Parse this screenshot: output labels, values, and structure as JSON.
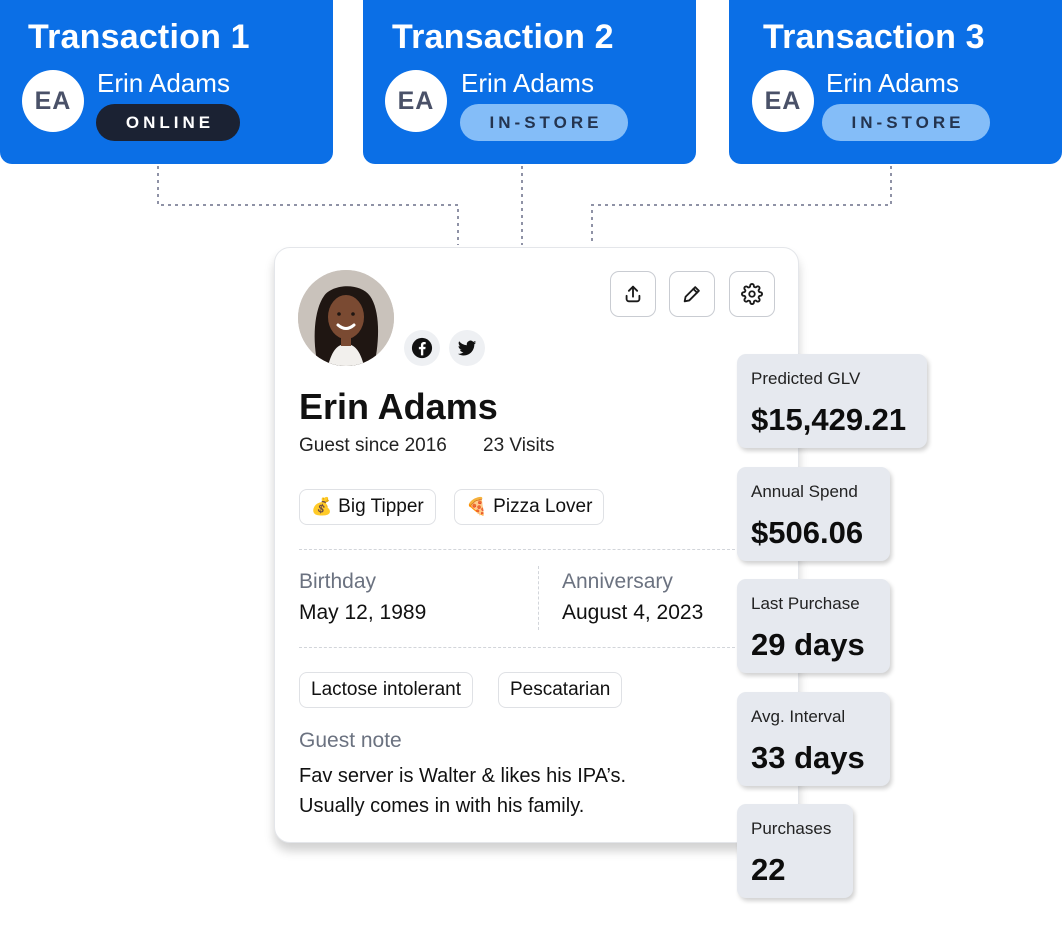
{
  "transactions": [
    {
      "title": "Transaction 1",
      "initials": "EA",
      "name": "Erin Adams",
      "channel": "ONLINE"
    },
    {
      "title": "Transaction 2",
      "initials": "EA",
      "name": "Erin Adams",
      "channel": "IN-STORE"
    },
    {
      "title": "Transaction 3",
      "initials": "EA",
      "name": "Erin Adams",
      "channel": "IN-STORE"
    }
  ],
  "colors": {
    "brand_blue": "#0b6fe6",
    "online_badge": "#1b2233",
    "instore_badge": "#84bdf8",
    "stat_card": "#e6e9ef"
  },
  "profile": {
    "name": "Erin Adams",
    "guest_since": "Guest since 2016",
    "visits": "23 Visits",
    "social": [
      "facebook-icon",
      "twitter-icon"
    ],
    "actions": [
      "share-upload-icon",
      "edit-pencil-icon",
      "settings-gear-icon"
    ],
    "tags": [
      {
        "emoji": "💰",
        "label": "Big Tipper"
      },
      {
        "emoji": "🍕",
        "label": "Pizza Lover"
      }
    ],
    "birthday_label": "Birthday",
    "birthday_value": "May 12, 1989",
    "anniversary_label": "Anniversary",
    "anniversary_value": "August 4, 2023",
    "dietary": [
      "Lactose intolerant",
      "Pescatarian"
    ],
    "note_label": "Guest note",
    "note_lines": [
      "Fav server is Walter & likes his IPA’s.",
      "Usually comes in with his family."
    ]
  },
  "stats": [
    {
      "label": "Predicted GLV",
      "value": "$15,429.21"
    },
    {
      "label": "Annual Spend",
      "value": "$506.06"
    },
    {
      "label": "Last Purchase",
      "value": "29 days"
    },
    {
      "label": "Avg. Interval",
      "value": "33 days"
    },
    {
      "label": "Purchases",
      "value": "22"
    }
  ]
}
